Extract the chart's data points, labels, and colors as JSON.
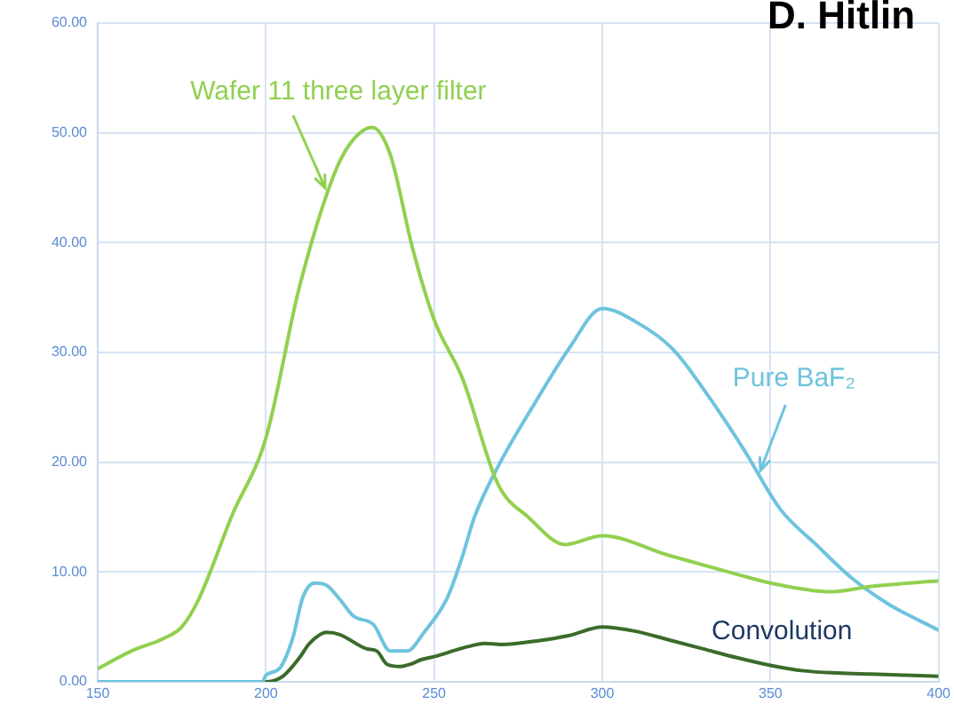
{
  "chart_data": {
    "type": "line",
    "annotations": [
      "D. Hitlin"
    ],
    "xlim": [
      150,
      400
    ],
    "xticks": [
      150,
      200,
      250,
      300,
      350,
      400
    ],
    "ylim": [
      0,
      60
    ],
    "yticks": [
      {
        "value": 0,
        "label": "0.00"
      },
      {
        "value": 10,
        "label": "10.00"
      },
      {
        "value": 20,
        "label": "20.00"
      },
      {
        "value": 30,
        "label": "30.00"
      },
      {
        "value": 40,
        "label": "40.00"
      },
      {
        "value": 50,
        "label": "50.00"
      },
      {
        "value": 60,
        "label": "60.00"
      }
    ],
    "grid": true,
    "legend": false,
    "marker": "none",
    "line_style": "solid",
    "series": [
      {
        "name": "Wafer 11 three layer filter",
        "color": "#92d050",
        "x": [
          150,
          160,
          170,
          175,
          180,
          190,
          200,
          210,
          220,
          225,
          231.6,
          237,
          243.6,
          250,
          258.5,
          269,
          278,
          289,
          300,
          320,
          340,
          350,
          368,
          380,
          400
        ],
        "values": [
          1.2,
          2.8,
          4,
          5,
          7.5,
          15.2,
          22.2,
          36,
          46,
          49,
          50.5,
          48,
          39.5,
          33,
          27.6,
          18,
          15,
          12.5,
          13.3,
          11.5,
          9.8,
          9,
          8.2,
          8.7,
          9.2
        ]
      },
      {
        "name": "Pure BaF₂",
        "color": "#6ec3dd",
        "x": [
          150,
          199,
          200,
          204,
          208,
          211,
          214.5,
          218,
          222,
          226,
          232,
          237,
          242,
          247,
          254,
          258.5,
          262,
          269,
          280,
          290,
          300,
          310.5,
          321,
          331.6,
          342,
          353,
          363.6,
          374,
          385,
          400
        ],
        "values": [
          0,
          0,
          0.6,
          1.2,
          4,
          7.7,
          9,
          8.8,
          7.5,
          6,
          5.2,
          2.8,
          2.8,
          4.5,
          7.7,
          11.5,
          15,
          19.6,
          25.4,
          30.3,
          34,
          32.7,
          30.3,
          26,
          21.2,
          15.7,
          12.5,
          9.5,
          7.1,
          4.7
        ]
      },
      {
        "name": "Convolution",
        "color": "#3b6b2a",
        "x": [
          150,
          200,
          205,
          210,
          213,
          218,
          222,
          230,
          233,
          236,
          240,
          243,
          246,
          250,
          260,
          265,
          270,
          280,
          290,
          300,
          310,
          320,
          330,
          340,
          350,
          360,
          370,
          380,
          400
        ],
        "values": [
          0,
          0,
          0.5,
          2.2,
          3.5,
          4.5,
          4.3,
          3,
          2.8,
          1.6,
          1.4,
          1.6,
          2,
          2.3,
          3.2,
          3.5,
          3.4,
          3.7,
          4.2,
          5,
          4.6,
          3.8,
          3,
          2.2,
          1.5,
          1,
          0.8,
          0.7,
          0.5
        ]
      }
    ]
  }
}
